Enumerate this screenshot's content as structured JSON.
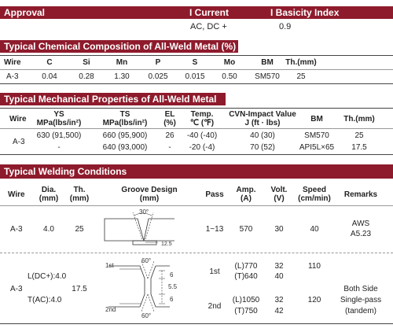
{
  "approval": {
    "title": "Approval",
    "current_label": "I Current",
    "current_value": "AC, DC +",
    "basicity_label": "I Basicity Index",
    "basicity_value": "0.9"
  },
  "chem": {
    "title": "Typical Chemical Composition of All-Weld Metal (%)",
    "headers": [
      "Wire",
      "C",
      "Si",
      "Mn",
      "P",
      "S",
      "Mo",
      "BM",
      "Th.(mm)"
    ],
    "row": [
      "A-3",
      "0.04",
      "0.28",
      "1.30",
      "0.025",
      "0.015",
      "0.50",
      "SM570",
      "25"
    ]
  },
  "mech": {
    "title": "Typical Mechanical Properties of All-Weld Metal",
    "headers": {
      "wire": "Wire",
      "ys": "YS",
      "ys_unit": "MPa(lbs/in²)",
      "ts": "TS",
      "ts_unit": "MPa(lbs/in²)",
      "el": "EL",
      "el_unit": "(%)",
      "temp": "Temp.",
      "temp_unit": "℃ (℉)",
      "cvn": "CVN-Impact Value",
      "cvn_unit": "J (ft · lbs)",
      "bm": "BM",
      "th": "Th.(mm)"
    },
    "wire": "A-3",
    "rows": [
      {
        "ys": "630 (91,500)",
        "ts": "660 (95,900)",
        "el": "26",
        "temp": "-40 (-40)",
        "cvn": "40 (30)",
        "bm": "SM570",
        "th": "25"
      },
      {
        "ys": "-",
        "ts": "640 (93,000)",
        "el": "-",
        "temp": "-20 (-4)",
        "cvn": "70 (52)",
        "bm": "API5L×65",
        "th": "17.5"
      }
    ]
  },
  "weld": {
    "title": "Typical Welding Conditions",
    "headers": {
      "wire": "Wire",
      "dia": "Dia.",
      "dia_unit": "(mm)",
      "th": "Th.",
      "th_unit": "(mm)",
      "groove": "Groove Design",
      "groove_unit": "(mm)",
      "pass": "Pass",
      "amp": "Amp.",
      "amp_unit": "(A)",
      "volt": "Volt.",
      "volt_unit": "(V)",
      "speed": "Speed",
      "speed_unit": "(cm/min)",
      "remarks": "Remarks"
    },
    "row1": {
      "wire": "A-3",
      "dia": "4.0",
      "th": "25",
      "pass": "1~13",
      "amp": "570",
      "volt": "30",
      "speed": "40",
      "remarks1": "AWS",
      "remarks2": "A5.23",
      "groove_angle": "30°",
      "groove_dim": "12.5"
    },
    "row2": {
      "wire": "A-3",
      "dia1": "L(DC+):4.0",
      "dia2": "T(AC):4.0",
      "th": "17.5",
      "pass1": "1st",
      "pass2": "2nd",
      "amp1a": "(L)770",
      "amp1b": "(T)640",
      "volt1a": "32",
      "volt1b": "40",
      "speed1": "110",
      "amp2a": "(L)1050",
      "amp2b": "(T)750",
      "volt2a": "32",
      "volt2b": "42",
      "speed2": "120",
      "remarks1": "Both Side",
      "remarks2": "Single-pass",
      "remarks3": "(tandem)",
      "g_label1": "1st",
      "g_label2": "2nd",
      "g_angle1": "60°",
      "g_angle2": "60°",
      "g_d1": "6",
      "g_d2": "5.5",
      "g_d3": "6"
    }
  }
}
